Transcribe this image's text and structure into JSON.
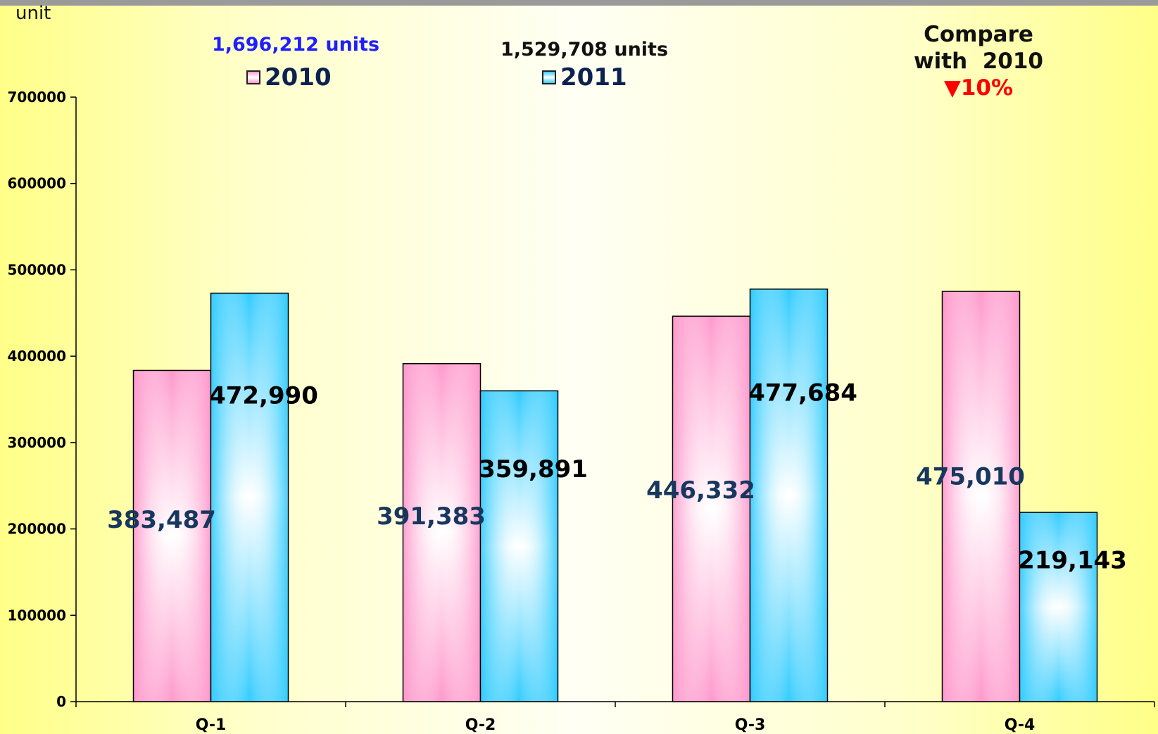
{
  "unit_label": "unit",
  "legend": {
    "2010": {
      "label": "2010",
      "total": "1,696,212 units",
      "total_color": "#1f1fff"
    },
    "2011": {
      "label": "2011",
      "total": "1,529,708 units",
      "total_color": "#111111"
    }
  },
  "compare": {
    "line1": "Compare",
    "line2": "with  2010",
    "arrow": "▼",
    "pct": "10%"
  },
  "colors": {
    "series_2010": "#ff99cc",
    "series_2011": "#33ccff",
    "label_2010": "#17375e",
    "label_2011": "#000000"
  },
  "chart_data": {
    "type": "bar",
    "categories": [
      "Q-1",
      "Q-2",
      "Q-3",
      "Q-4"
    ],
    "series": [
      {
        "name": "2010",
        "values": [
          383487,
          391383,
          446332,
          475010
        ],
        "labels": [
          "383,487",
          "391,383",
          "446,332",
          "475,010"
        ]
      },
      {
        "name": "2011",
        "values": [
          472990,
          359891,
          477684,
          219143
        ],
        "labels": [
          "472,990",
          "359,891",
          "477,684",
          "219,143"
        ]
      }
    ],
    "ylabel": "unit",
    "ylim": [
      0,
      700000
    ],
    "yticks": [
      0,
      100000,
      200000,
      300000,
      400000,
      500000,
      600000,
      700000
    ],
    "ytick_labels": [
      "0",
      "100000",
      "200000",
      "300000",
      "400000",
      "500000",
      "600000",
      "700000"
    ],
    "grid": false,
    "legend_position": "top"
  }
}
